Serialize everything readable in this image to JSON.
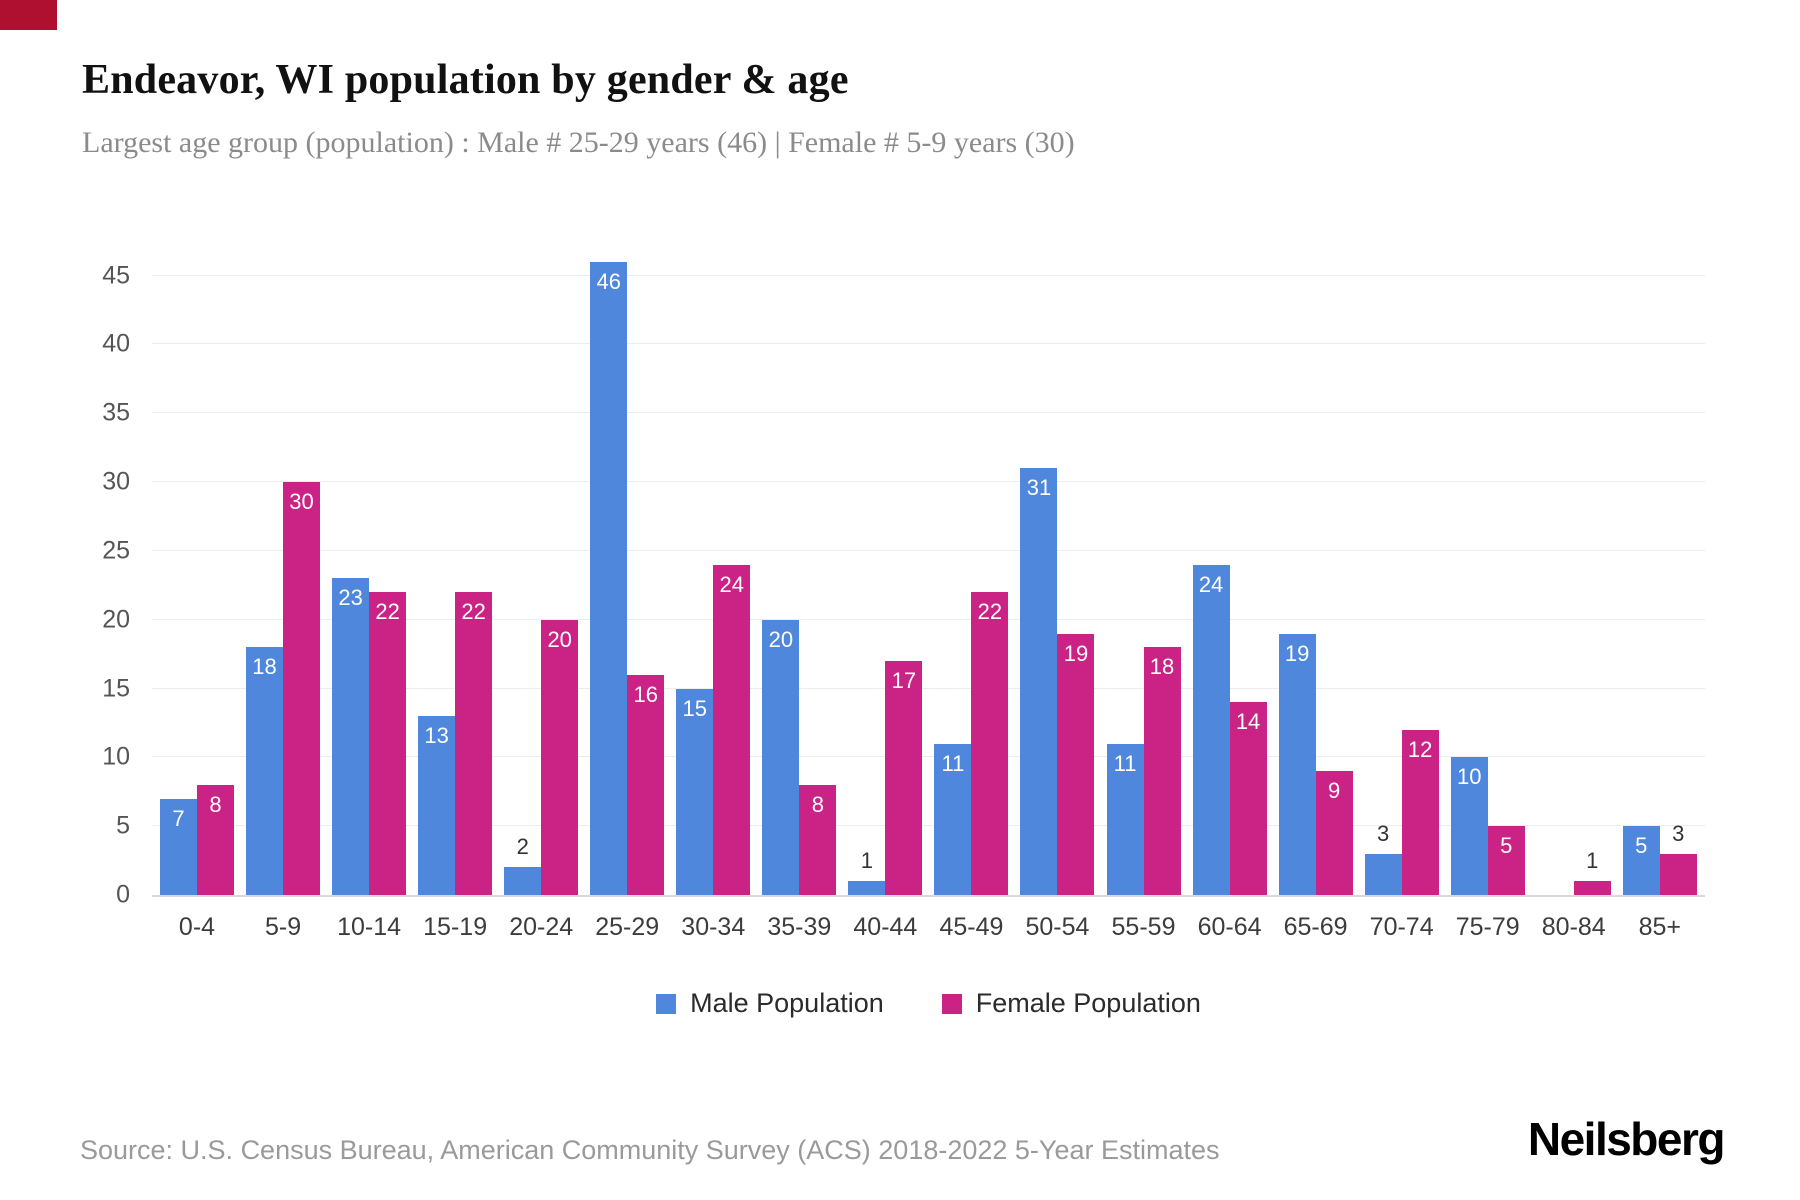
{
  "brand": {
    "accent_color": "#b01030",
    "logo": "Neilsberg"
  },
  "header": {
    "title": "Endeavor, WI population by gender & age",
    "subtitle": "Largest age group (population) : Male # 25-29 years (46) | Female # 5-9 years (30)"
  },
  "footer": {
    "source": "Source: U.S. Census Bureau, American Community Survey (ACS) 2018-2022 5-Year Estimates"
  },
  "chart_data": {
    "type": "bar",
    "title": "Endeavor, WI population by gender & age",
    "categories": [
      "0-4",
      "5-9",
      "10-14",
      "15-19",
      "20-24",
      "25-29",
      "30-34",
      "35-39",
      "40-44",
      "45-49",
      "50-54",
      "55-59",
      "60-64",
      "65-69",
      "70-74",
      "75-79",
      "80-84",
      "85+"
    ],
    "series": [
      {
        "name": "Male Population",
        "color": "#4f87dd",
        "values": [
          7,
          18,
          23,
          13,
          2,
          46,
          15,
          20,
          1,
          11,
          31,
          11,
          24,
          19,
          3,
          10,
          0,
          5
        ]
      },
      {
        "name": "Female Population",
        "color": "#cb2286",
        "values": [
          8,
          30,
          22,
          22,
          20,
          16,
          24,
          8,
          17,
          22,
          19,
          18,
          14,
          9,
          12,
          5,
          1,
          3
        ]
      }
    ],
    "xlabel": "",
    "ylabel": "",
    "ylim": [
      0,
      46
    ],
    "yticks": [
      0,
      5,
      10,
      15,
      20,
      25,
      30,
      35,
      40,
      45
    ],
    "grid": true,
    "legend_position": "bottom",
    "value_labels": true,
    "label_inside_threshold": 5
  }
}
